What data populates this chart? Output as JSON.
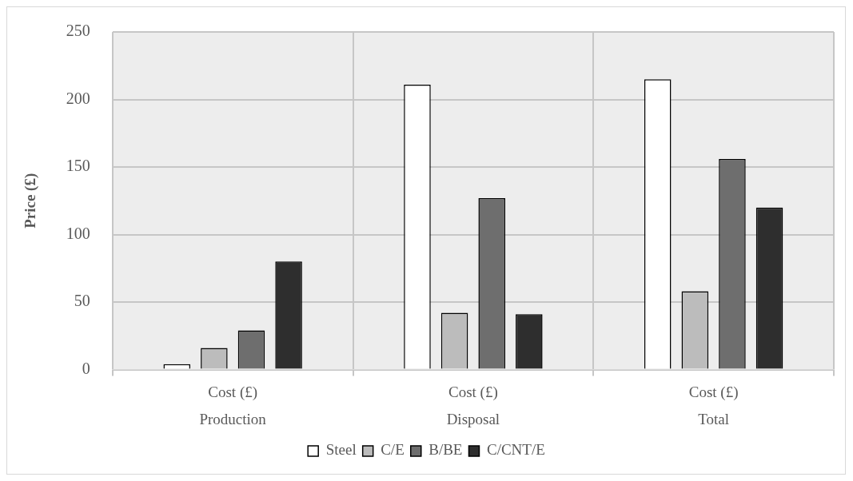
{
  "chart_data": {
    "type": "bar",
    "ylabel": "Price (£)",
    "categories": [
      "Cost (£)\nProduction",
      "Cost (£)\nDisposal",
      "Cost (£)\nTotal"
    ],
    "series": [
      {
        "name": "Steel",
        "color": "#ffffff",
        "values": [
          4,
          211,
          215
        ]
      },
      {
        "name": "C/E",
        "color": "#bcbcbc",
        "values": [
          16,
          42,
          58
        ]
      },
      {
        "name": "B/BE",
        "color": "#6e6e6e",
        "values": [
          29,
          127,
          156
        ]
      },
      {
        "name": "C/CNT/E",
        "color": "#2e2e2e",
        "values": [
          80,
          41,
          120
        ]
      }
    ],
    "ylim": [
      0,
      250
    ],
    "yticks": [
      0,
      50,
      100,
      150,
      200,
      250
    ],
    "grid": true,
    "legend": "bottom"
  }
}
